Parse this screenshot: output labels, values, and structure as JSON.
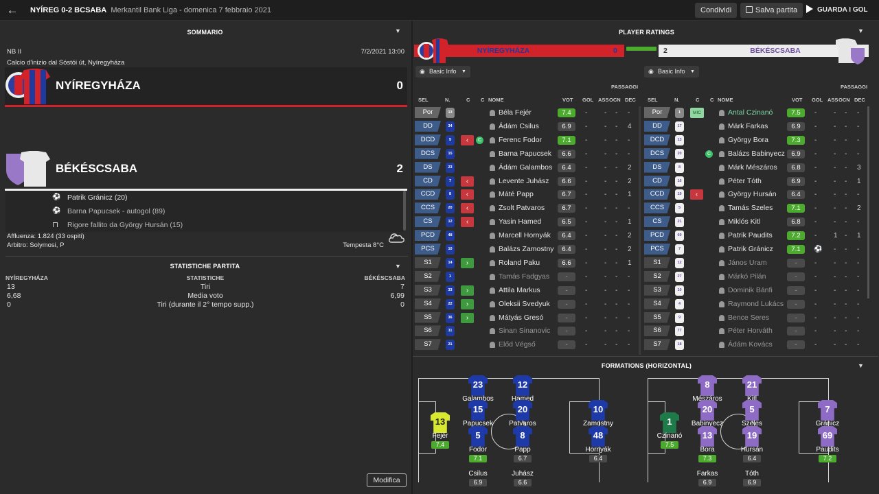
{
  "header": {
    "score": "NYÍREG 0-2 BCSABA",
    "competition": "Merkantil Bank Liga",
    "date": "domenica 7 febbraio 2021",
    "share": "Condividi",
    "save": "Salva partita",
    "watch": "GUARDA I GOL"
  },
  "summary": {
    "title": "SOMMARIO",
    "league": "NB II",
    "kickoff_date": "7/2/2021 13:00",
    "venue": "Calcio d'inizio dal Sóstói út, Nyíregyháza",
    "home": {
      "name": "NYÍREGYHÁZA",
      "score": "0"
    },
    "away": {
      "name": "BÉKÉSCSABA",
      "score": "2"
    },
    "events": [
      {
        "text": "Patrik Gránicz (20)"
      },
      {
        "text": "Barna Papucsek - autogol (89)"
      },
      {
        "text": "Rigore fallito da György Hursán (15)"
      }
    ],
    "attendance": "Affluenza: 1.824 (33 ospiti)",
    "referee": "Arbitro: Solymosi, P",
    "weather": "Tempesta 8°C"
  },
  "stats": {
    "title": "STATISTICHE PARTITA",
    "home_label": "NYÍREGYHÁZA",
    "mid_label": "STATISTICHE",
    "away_label": "BÉKÉSCSABA",
    "rows": [
      {
        "h": "13",
        "l": "Tiri",
        "a": "7"
      },
      {
        "h": "6,68",
        "l": "Media voto",
        "a": "6,99"
      },
      {
        "h": "0",
        "l": "Tiri (durante il 2° tempo supp.)",
        "a": "0"
      }
    ]
  },
  "modify": "Modifica",
  "ratings": {
    "title": "PLAYER RATINGS",
    "home_name": "NYÍREGYHÁZA",
    "home_score": "0",
    "away_name": "BÉKÉSCSABA",
    "away_score": "2",
    "basic": "Basic Info",
    "passaggi": "PASSAGGI",
    "cols": {
      "sel": "SEL",
      "n": "N.",
      "c1": "C",
      "c2": "C",
      "nome": "NOME",
      "vot": "VOT",
      "gol": "GOL",
      "ass": "ASS",
      "ocn": "OCN",
      "dec": "DEC"
    },
    "home": [
      {
        "pos": "Por",
        "num": "13",
        "arrow": "",
        "name": "Béla Fejér",
        "rating": "7.4",
        "gol": "-",
        "ass": "-",
        "ocn": "-",
        "dec": "-"
      },
      {
        "pos": "DD",
        "num": "34",
        "arrow": "",
        "name": "Ádám Csilus",
        "rating": "6.9",
        "gol": "-",
        "ass": "-",
        "ocn": "-",
        "dec": "4"
      },
      {
        "pos": "DCD",
        "num": "5",
        "arrow": "out",
        "name": "Ferenc Fodor",
        "rating": "7.1",
        "gol": "-",
        "ass": "-",
        "ocn": "-",
        "dec": "-",
        "capt": "C"
      },
      {
        "pos": "DCS",
        "num": "15",
        "arrow": "",
        "name": "Barna Papucsek",
        "rating": "6.6",
        "gol": "-",
        "ass": "-",
        "ocn": "-",
        "dec": "-"
      },
      {
        "pos": "DS",
        "num": "23",
        "arrow": "",
        "name": "Ádám Galambos",
        "rating": "6.4",
        "gol": "-",
        "ass": "-",
        "ocn": "-",
        "dec": "2"
      },
      {
        "pos": "CD",
        "num": "7",
        "arrow": "out",
        "name": "Levente Juhász",
        "rating": "6.6",
        "gol": "-",
        "ass": "-",
        "ocn": "-",
        "dec": "2"
      },
      {
        "pos": "CCD",
        "num": "8",
        "arrow": "out",
        "name": "Máté Papp",
        "rating": "6.7",
        "gol": "-",
        "ass": "-",
        "ocn": "-",
        "dec": "1"
      },
      {
        "pos": "CCS",
        "num": "20",
        "arrow": "out",
        "name": "Zsolt Patvaros",
        "rating": "6.7",
        "gol": "-",
        "ass": "-",
        "ocn": "-",
        "dec": "-"
      },
      {
        "pos": "CS",
        "num": "12",
        "arrow": "out",
        "name": "Yasin Hamed",
        "rating": "6.5",
        "gol": "-",
        "ass": "-",
        "ocn": "-",
        "dec": "1"
      },
      {
        "pos": "PCD",
        "num": "48",
        "arrow": "",
        "name": "Marcell Hornyák",
        "rating": "6.4",
        "gol": "-",
        "ass": "-",
        "ocn": "-",
        "dec": "2"
      },
      {
        "pos": "PCS",
        "num": "10",
        "arrow": "",
        "name": "Balázs Zamostny",
        "rating": "6.4",
        "gol": "-",
        "ass": "-",
        "ocn": "-",
        "dec": "2"
      },
      {
        "pos": "S1",
        "num": "14",
        "arrow": "in",
        "name": "Roland Paku",
        "rating": "6.6",
        "gol": "-",
        "ass": "-",
        "ocn": "-",
        "dec": "1"
      },
      {
        "pos": "S2",
        "num": "1",
        "arrow": "",
        "name": "Tamás Fadgyas",
        "rating": "-",
        "gol": "-",
        "ass": "-",
        "ocn": "-",
        "dec": "-"
      },
      {
        "pos": "S3",
        "num": "33",
        "arrow": "in",
        "name": "Attila Markus",
        "rating": "-",
        "gol": "-",
        "ass": "-",
        "ocn": "-",
        "dec": "-"
      },
      {
        "pos": "S4",
        "num": "22",
        "arrow": "in",
        "name": "Oleksii Svedyuk",
        "rating": "-",
        "gol": "-",
        "ass": "-",
        "ocn": "-",
        "dec": "-"
      },
      {
        "pos": "S5",
        "num": "36",
        "arrow": "in",
        "name": "Mátyás Gresó",
        "rating": "-",
        "gol": "-",
        "ass": "-",
        "ocn": "-",
        "dec": "-"
      },
      {
        "pos": "S6",
        "num": "11",
        "arrow": "",
        "name": "Sinan Sinanovic",
        "rating": "-",
        "gol": "-",
        "ass": "-",
        "ocn": "-",
        "dec": "-"
      },
      {
        "pos": "S7",
        "num": "21",
        "arrow": "",
        "name": "Előd Végső",
        "rating": "-",
        "gol": "-",
        "ass": "-",
        "ocn": "-",
        "dec": "-"
      }
    ],
    "away": [
      {
        "pos": "Por",
        "num": "1",
        "arrow": "",
        "name": "Antal Czinanó",
        "rating": "7.5",
        "gol": "-",
        "ass": "-",
        "ocn": "-",
        "dec": "-",
        "mic": "MIC"
      },
      {
        "pos": "DD",
        "num": "17",
        "arrow": "",
        "name": "Márk Farkas",
        "rating": "6.9",
        "gol": "-",
        "ass": "-",
        "ocn": "-",
        "dec": "-"
      },
      {
        "pos": "DCD",
        "num": "13",
        "arrow": "",
        "name": "György Bora",
        "rating": "7.3",
        "gol": "-",
        "ass": "-",
        "ocn": "-",
        "dec": "-"
      },
      {
        "pos": "DCS",
        "num": "20",
        "arrow": "",
        "name": "Balázs Babinyecz",
        "rating": "6.9",
        "gol": "-",
        "ass": "-",
        "ocn": "-",
        "dec": "-",
        "capt": "C"
      },
      {
        "pos": "DS",
        "num": "8",
        "arrow": "",
        "name": "Márk Mészáros",
        "rating": "6.8",
        "gol": "-",
        "ass": "-",
        "ocn": "-",
        "dec": "3"
      },
      {
        "pos": "CD",
        "num": "16",
        "arrow": "",
        "name": "Péter Tóth",
        "rating": "6.9",
        "gol": "-",
        "ass": "-",
        "ocn": "-",
        "dec": "1"
      },
      {
        "pos": "CCD",
        "num": "19",
        "arrow": "out",
        "name": "György Hursán",
        "rating": "6.4",
        "gol": "-",
        "ass": "-",
        "ocn": "-",
        "dec": "-"
      },
      {
        "pos": "CCS",
        "num": "5",
        "arrow": "",
        "name": "Tamás Szeles",
        "rating": "7.1",
        "gol": "-",
        "ass": "-",
        "ocn": "-",
        "dec": "2"
      },
      {
        "pos": "CS",
        "num": "21",
        "arrow": "",
        "name": "Miklós Kitl",
        "rating": "6.8",
        "gol": "-",
        "ass": "-",
        "ocn": "-",
        "dec": "-"
      },
      {
        "pos": "PCD",
        "num": "69",
        "arrow": "",
        "name": "Patrik Paudits",
        "rating": "7.2",
        "gol": "-",
        "ass": "1",
        "ocn": "-",
        "dec": "1"
      },
      {
        "pos": "PCS",
        "num": "7",
        "arrow": "",
        "name": "Patrik Gránicz",
        "rating": "7.1",
        "gol": "ball",
        "ass": "-",
        "ocn": "-",
        "dec": "-"
      },
      {
        "pos": "S1",
        "num": "12",
        "arrow": "",
        "name": "János Uram",
        "rating": "-",
        "gol": "-",
        "ass": "-",
        "ocn": "-",
        "dec": "-"
      },
      {
        "pos": "S2",
        "num": "27",
        "arrow": "",
        "name": "Márkó Pilán",
        "rating": "-",
        "gol": "-",
        "ass": "-",
        "ocn": "-",
        "dec": "-"
      },
      {
        "pos": "S3",
        "num": "10",
        "arrow": "",
        "name": "Dominik Bánfi",
        "rating": "-",
        "gol": "-",
        "ass": "-",
        "ocn": "-",
        "dec": "-"
      },
      {
        "pos": "S4",
        "num": "4",
        "arrow": "",
        "name": "Raymond Lukács",
        "rating": "-",
        "gol": "-",
        "ass": "-",
        "ocn": "-",
        "dec": "-"
      },
      {
        "pos": "S5",
        "num": "9",
        "arrow": "",
        "name": "Bence Seres",
        "rating": "-",
        "gol": "-",
        "ass": "-",
        "ocn": "-",
        "dec": "-"
      },
      {
        "pos": "S6",
        "num": "77",
        "arrow": "",
        "name": "Péter Horváth",
        "rating": "-",
        "gol": "-",
        "ass": "-",
        "ocn": "-",
        "dec": "-"
      },
      {
        "pos": "S7",
        "num": "18",
        "arrow": "",
        "name": "Ádám Kovács",
        "rating": "-",
        "gol": "-",
        "ass": "-",
        "ocn": "-",
        "dec": "-"
      }
    ]
  },
  "formations": {
    "title": "FORMATIONS (HORIZONTAL)",
    "home": [
      {
        "n": "13",
        "name": "Fejér",
        "r": "7.4",
        "gk": true
      },
      {
        "n": "23",
        "name": "Galambos",
        "r": "",
        "gk": false
      },
      {
        "n": "12",
        "name": "Hamed",
        "r": "",
        "gk": false
      },
      {
        "n": "15",
        "name": "Papucsek",
        "r": "",
        "gk": false
      },
      {
        "n": "20",
        "name": "Patvaros",
        "r": "",
        "gk": false
      },
      {
        "n": "10",
        "name": "Zamostny",
        "r": "",
        "gk": false
      },
      {
        "n": "5",
        "name": "Fodor",
        "r": "7.1",
        "gk": false
      },
      {
        "n": "8",
        "name": "Papp",
        "r": "6.7",
        "gk": false
      },
      {
        "n": "48",
        "name": "Hornyák",
        "r": "6.4",
        "gk": false
      },
      {
        "n": "",
        "name": "Csilus",
        "r": "6.9",
        "gk": false
      },
      {
        "n": "",
        "name": "Juhász",
        "r": "6.6",
        "gk": false
      }
    ],
    "away": [
      {
        "n": "1",
        "name": "Czinanó",
        "r": "7.5",
        "gk": true
      },
      {
        "n": "8",
        "name": "Mészáros",
        "r": "",
        "gk": false
      },
      {
        "n": "21",
        "name": "Kitl",
        "r": "",
        "gk": false
      },
      {
        "n": "20",
        "name": "Babinyecz",
        "r": "",
        "gk": false
      },
      {
        "n": "5",
        "name": "Szeles",
        "r": "",
        "gk": false
      },
      {
        "n": "7",
        "name": "Gránicz",
        "r": "",
        "gk": false
      },
      {
        "n": "13",
        "name": "Bora",
        "r": "7.3",
        "gk": false
      },
      {
        "n": "19",
        "name": "Hursán",
        "r": "6.4",
        "gk": false
      },
      {
        "n": "69",
        "name": "Paudits",
        "r": "7.2",
        "gk": false
      },
      {
        "n": "",
        "name": "Farkas",
        "r": "6.9",
        "gk": false
      },
      {
        "n": "",
        "name": "Tóth",
        "r": "6.9",
        "gk": false
      }
    ]
  },
  "colors": {
    "home_red": "#d2232a",
    "home_blue": "#1e3a9e",
    "away_purple": "#9a78c8",
    "green": "#4caa2f",
    "sub_red": "#c7373d",
    "sub_green": "#3f9a3f",
    "pos_tile": "#3e5c8a"
  }
}
